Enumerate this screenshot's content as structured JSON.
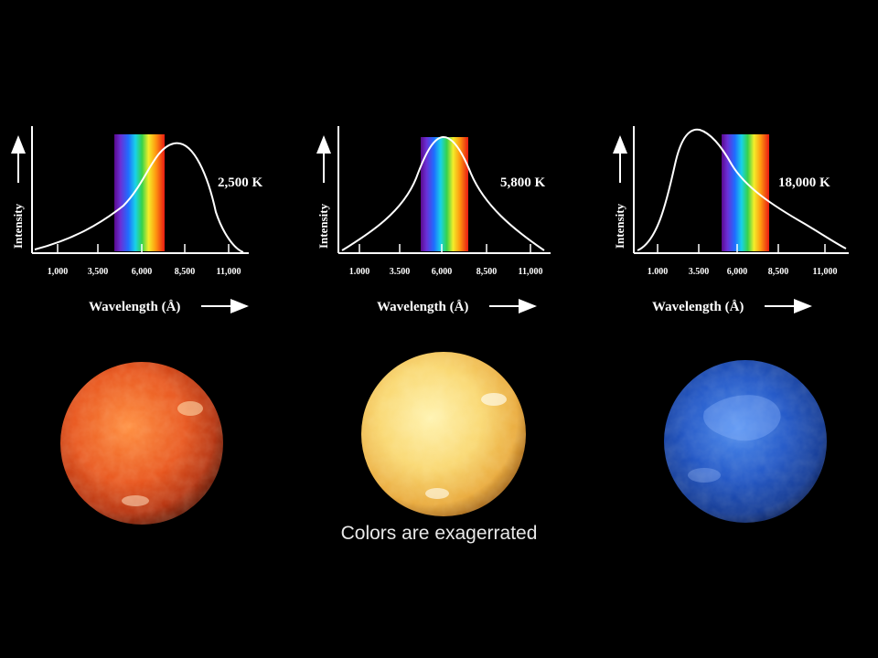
{
  "panels": [
    {
      "temperature": "2,500 K",
      "y_label": "Intensity",
      "x_label": "Wavelength (Å)",
      "ticks": [
        "1,000",
        "3,500",
        "6,000",
        "8,500",
        "11,000"
      ],
      "peak_tick_position": 2.7,
      "star_color": "#e0521a"
    },
    {
      "temperature": "5,800 K",
      "y_label": "Intensity",
      "x_label": "Wavelength (Å)",
      "ticks": [
        "1.000",
        "3.500",
        "6,000",
        "8,500",
        "11,000"
      ],
      "peak_tick_position": 2.0,
      "star_color": "#f6cf5e"
    },
    {
      "temperature": "18,000 K",
      "y_label": "Intensity",
      "x_label": "Wavelength (Å)",
      "ticks": [
        "1.000",
        "3.500",
        "6,000",
        "8,500",
        "11,000"
      ],
      "peak_tick_position": 1.0,
      "star_color": "#1f4fb8"
    }
  ],
  "caption": "Colors are exagerrated"
}
